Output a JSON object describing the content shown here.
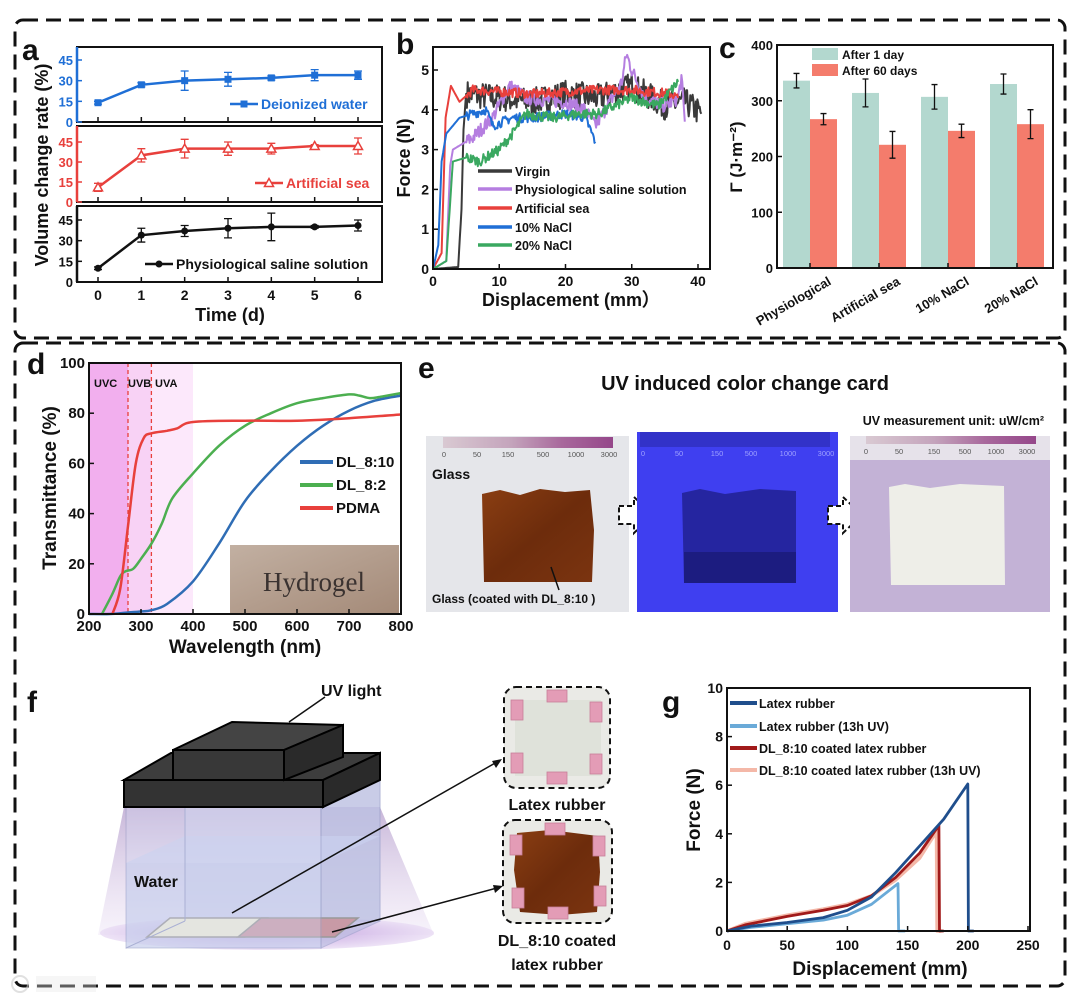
{
  "figure": {
    "panel_labels": [
      "a",
      "b",
      "c",
      "d",
      "e",
      "f",
      "g"
    ],
    "watermark": "大数跨境"
  },
  "chart_data": [
    {
      "panel": "a",
      "type": "line",
      "xlabel": "Time (d)",
      "ylabel": "Volume change rate (%)",
      "x": [
        0,
        1,
        2,
        3,
        4,
        5,
        6
      ],
      "xticks": [
        0,
        1,
        2,
        3,
        4,
        5,
        6
      ],
      "yticks": [
        0,
        15,
        30,
        45
      ],
      "ylim": [
        0,
        55
      ],
      "series": [
        {
          "name": "Deionized water",
          "color": "#1f6fd6",
          "marker": "square",
          "values": [
            14,
            27,
            30,
            31,
            32,
            34,
            34
          ],
          "errors": [
            1,
            1.5,
            7,
            5,
            1.5,
            4,
            3
          ]
        },
        {
          "name": "Artificial sea",
          "color": "#e8403c",
          "marker": "triangle",
          "values": [
            11,
            35,
            40,
            40,
            40,
            42,
            42
          ],
          "errors": [
            3,
            5,
            7,
            5,
            4,
            1,
            6
          ]
        },
        {
          "name": "Physiological saline solution",
          "color": "#111111",
          "marker": "circle",
          "values": [
            10,
            34,
            37,
            39,
            40,
            40,
            41
          ],
          "errors": [
            1,
            5,
            4,
            7,
            10,
            1,
            4
          ]
        }
      ]
    },
    {
      "panel": "b",
      "type": "line",
      "xlabel": "Displacement (mm）",
      "ylabel": "Force (N)",
      "xlim": [
        0,
        42
      ],
      "ylim": [
        0,
        5.5
      ],
      "xticks": [
        0,
        10,
        20,
        30,
        40
      ],
      "yticks": [
        0,
        1,
        2,
        3,
        4,
        5
      ],
      "legend": "bottom-center",
      "series": [
        {
          "name": "Virgin",
          "color": "#3a3a3a",
          "noise": 0.35,
          "points": [
            [
              0,
              0
            ],
            [
              3.8,
              0.05
            ],
            [
              4.3,
              1.5
            ],
            [
              4.6,
              3.5
            ],
            [
              5,
              4.4
            ],
            [
              10,
              4.3
            ],
            [
              15,
              4.2
            ],
            [
              20,
              4.4
            ],
            [
              25,
              4.3
            ],
            [
              30,
              4.6
            ],
            [
              35,
              4.1
            ],
            [
              38,
              4.2
            ],
            [
              40.5,
              3.9
            ]
          ]
        },
        {
          "name": "Physiological saline solution",
          "color": "#b57ee0",
          "noise": 0.18,
          "points": [
            [
              0,
              0
            ],
            [
              2,
              0.2
            ],
            [
              2.6,
              2.6
            ],
            [
              3,
              3.0
            ],
            [
              6,
              3.3
            ],
            [
              9,
              3.8
            ],
            [
              11.5,
              4.6
            ],
            [
              12.5,
              4.5
            ],
            [
              14,
              4.3
            ],
            [
              20,
              4.2
            ],
            [
              23,
              4.0
            ],
            [
              24.5,
              3.6
            ],
            [
              26,
              4.0
            ],
            [
              28.5,
              4.7
            ],
            [
              29.2,
              5.4
            ],
            [
              30,
              5.0
            ],
            [
              32,
              4.3
            ],
            [
              35,
              4.1
            ],
            [
              37,
              4.3
            ],
            [
              37.5,
              4.8
            ],
            [
              38,
              3.7
            ]
          ]
        },
        {
          "name": "Artificial sea",
          "color": "#e8403c",
          "noise": 0.12,
          "points": [
            [
              0,
              0
            ],
            [
              1.3,
              0.4
            ],
            [
              1.9,
              3.8
            ],
            [
              2.7,
              4.6
            ],
            [
              4,
              4.2
            ],
            [
              6,
              4.5
            ],
            [
              15,
              4.4
            ],
            [
              25,
              4.5
            ],
            [
              30,
              4.5
            ],
            [
              36,
              4.4
            ],
            [
              37,
              4.3
            ]
          ]
        },
        {
          "name": "10% NaCl",
          "color": "#1f6fd6",
          "noise": 0.12,
          "points": [
            [
              0,
              0
            ],
            [
              0.8,
              0.6
            ],
            [
              1.3,
              2.7
            ],
            [
              2,
              3.4
            ],
            [
              4,
              3.8
            ],
            [
              8,
              4.0
            ],
            [
              9,
              3.6
            ],
            [
              12,
              3.8
            ],
            [
              15,
              3.8
            ],
            [
              20,
              3.9
            ],
            [
              23,
              3.8
            ],
            [
              24.5,
              3.2
            ]
          ]
        },
        {
          "name": "20% NaCl",
          "color": "#3aa860",
          "noise": 0.13,
          "points": [
            [
              0,
              0
            ],
            [
              2,
              0.2
            ],
            [
              3,
              2.7
            ],
            [
              5,
              2.8
            ],
            [
              7,
              2.7
            ],
            [
              10,
              3.0
            ],
            [
              12,
              3.4
            ],
            [
              14,
              3.9
            ],
            [
              18,
              3.8
            ],
            [
              22,
              3.9
            ],
            [
              25,
              3.9
            ],
            [
              30,
              4.3
            ],
            [
              34,
              4.1
            ],
            [
              37,
              4.7
            ]
          ]
        }
      ]
    },
    {
      "panel": "c",
      "type": "bar",
      "ylabel": "Γ (J·m⁻²)",
      "ylim": [
        0,
        400
      ],
      "yticks": [
        0,
        100,
        200,
        300,
        400
      ],
      "categories": [
        "Physiological",
        "Artificial sea",
        "10% NaCl",
        "20% NaCl"
      ],
      "legend": "top-left",
      "series": [
        {
          "name": "After 1 day",
          "color": "#b3d8cf",
          "values": [
            336,
            314,
            307,
            330
          ],
          "errors": [
            13,
            25,
            22,
            18
          ]
        },
        {
          "name": "After 60 days",
          "color": "#f47c6c",
          "values": [
            267,
            221,
            246,
            258
          ],
          "errors": [
            10,
            24,
            12,
            26
          ]
        }
      ]
    },
    {
      "panel": "d",
      "type": "line",
      "xlabel": "Wavelength (nm)",
      "ylabel": "Transmittance (%)",
      "xlim": [
        200,
        800
      ],
      "ylim": [
        0,
        100
      ],
      "xticks": [
        200,
        300,
        400,
        500,
        600,
        700,
        800
      ],
      "yticks": [
        0,
        20,
        40,
        60,
        80,
        100
      ],
      "regions": [
        {
          "label": "UVC",
          "range": [
            200,
            275
          ],
          "color": "#f2afee"
        },
        {
          "label": "UVB",
          "range": [
            275,
            320
          ],
          "color": "#f8d2f5"
        },
        {
          "label": "UVA",
          "range": [
            320,
            400
          ],
          "color": "#fce8fb"
        }
      ],
      "boundary_lines": [
        275,
        320
      ],
      "inset_label": "Hydrogel",
      "legend": "right",
      "series": [
        {
          "name": "DL_8:10",
          "color": "#2f6db5",
          "points": [
            [
              200,
              0
            ],
            [
              240,
              0
            ],
            [
              270,
              0.5
            ],
            [
              300,
              1
            ],
            [
              320,
              1.5
            ],
            [
              350,
              4
            ],
            [
              400,
              13
            ],
            [
              450,
              28
            ],
            [
              500,
              45
            ],
            [
              550,
              57
            ],
            [
              600,
              67
            ],
            [
              650,
              75
            ],
            [
              700,
              81
            ],
            [
              750,
              85
            ],
            [
              800,
              87
            ]
          ]
        },
        {
          "name": "DL_8:2",
          "color": "#4caf50",
          "points": [
            [
              225,
              0
            ],
            [
              245,
              8
            ],
            [
              260,
              15
            ],
            [
              270,
              17
            ],
            [
              285,
              18
            ],
            [
              300,
              22
            ],
            [
              320,
              28
            ],
            [
              340,
              36
            ],
            [
              360,
              46
            ],
            [
              400,
              56
            ],
            [
              450,
              67
            ],
            [
              500,
              75
            ],
            [
              550,
              80
            ],
            [
              600,
              84
            ],
            [
              650,
              86
            ],
            [
              700,
              87.5
            ],
            [
              720,
              87
            ],
            [
              740,
              86
            ],
            [
              760,
              86.5
            ],
            [
              800,
              88
            ]
          ]
        },
        {
          "name": "PDMA",
          "color": "#e8403c",
          "points": [
            [
              245,
              0
            ],
            [
              260,
              10
            ],
            [
              275,
              35
            ],
            [
              290,
              60
            ],
            [
              305,
              70
            ],
            [
              320,
              72
            ],
            [
              350,
              73
            ],
            [
              370,
              74
            ],
            [
              400,
              76.5
            ],
            [
              500,
              77
            ],
            [
              600,
              77
            ],
            [
              700,
              78
            ],
            [
              800,
              79.5
            ]
          ]
        }
      ]
    },
    {
      "panel": "g",
      "type": "line",
      "xlabel": "Displacement (mm)",
      "ylabel": "Force (N)",
      "xlim": [
        0,
        250
      ],
      "ylim": [
        0,
        10
      ],
      "xticks": [
        0,
        50,
        100,
        150,
        200,
        250
      ],
      "yticks": [
        0,
        2,
        4,
        6,
        8,
        10
      ],
      "legend": "top-left",
      "series": [
        {
          "name": "Latex rubber",
          "color": "#1f4e8c",
          "points": [
            [
              0,
              0
            ],
            [
              20,
              0.2
            ],
            [
              50,
              0.35
            ],
            [
              80,
              0.55
            ],
            [
              100,
              0.85
            ],
            [
              120,
              1.4
            ],
            [
              140,
              2.4
            ],
            [
              160,
              3.5
            ],
            [
              180,
              4.6
            ],
            [
              200,
              6.05
            ],
            [
              200.5,
              0
            ],
            [
              205,
              0
            ]
          ]
        },
        {
          "name": "Latex rubber (13h UV)",
          "color": "#6aaad8",
          "points": [
            [
              0,
              0
            ],
            [
              20,
              0.15
            ],
            [
              50,
              0.3
            ],
            [
              80,
              0.45
            ],
            [
              100,
              0.65
            ],
            [
              120,
              1.1
            ],
            [
              142,
              1.95
            ],
            [
              142.5,
              0
            ],
            [
              148,
              0
            ]
          ]
        },
        {
          "name": "DL_8:10 coated latex rubber",
          "color": "#a11a1a",
          "points": [
            [
              0,
              0
            ],
            [
              15,
              0.25
            ],
            [
              50,
              0.6
            ],
            [
              80,
              0.85
            ],
            [
              100,
              1.05
            ],
            [
              120,
              1.45
            ],
            [
              140,
              2.2
            ],
            [
              160,
              3.2
            ],
            [
              176,
              4.35
            ],
            [
              176.5,
              0
            ],
            [
              180,
              0
            ]
          ]
        },
        {
          "name": "DL_8:10 coated latex rubber (13h UV)",
          "color": "#f4b8a8",
          "points": [
            [
              0,
              0
            ],
            [
              15,
              0.3
            ],
            [
              50,
              0.65
            ],
            [
              80,
              0.9
            ],
            [
              100,
              1.1
            ],
            [
              120,
              1.45
            ],
            [
              140,
              2.1
            ],
            [
              160,
              3.0
            ],
            [
              174,
              4.1
            ],
            [
              174.5,
              0
            ],
            [
              178,
              0
            ]
          ]
        }
      ]
    }
  ],
  "panel_e": {
    "title": "UV induced color change card",
    "unit_note": "UV measurement unit: uW/cm²",
    "scale_labels": [
      "0",
      "50",
      "150",
      "500",
      "1000",
      "3000"
    ],
    "glass_label": "Glass",
    "coated_label": "Glass (coated with DL_8:10 )"
  },
  "panel_f": {
    "uv_light_label": "UV light",
    "water_label": "Water",
    "sample1_label": "Latex rubber",
    "sample2_label_line1": "DL_8:10 coated",
    "sample2_label_line2": "latex rubber"
  }
}
